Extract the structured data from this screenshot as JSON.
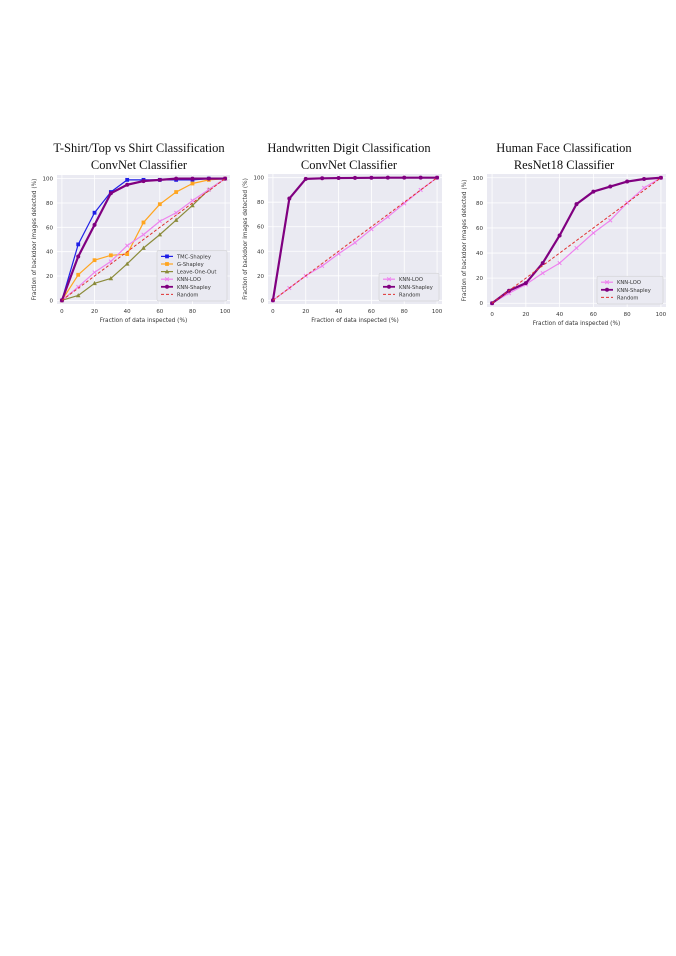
{
  "colors": {
    "bg": "#eaeaf2",
    "grid": "#ffffff",
    "tmc": "#1f1fe6",
    "gshapley": "#ffa520",
    "loo": "#8b8b3a",
    "knnloo": "#ee82ee",
    "knnshapley": "#800080",
    "random": "#e03030"
  },
  "chart_data": [
    {
      "type": "line",
      "title": "T-Shirt/Top vs Shirt Classification",
      "subtitle": "ConvNet Classifier",
      "xlabel": "Fraction of data inspected (%)",
      "ylabel": "Fraction of backdoor images detected (%)",
      "xlim": [
        -3,
        103
      ],
      "ylim": [
        -3,
        103
      ],
      "xticks": [
        "0",
        "20",
        "40",
        "60",
        "80",
        "100"
      ],
      "yticks": [
        "0",
        "20",
        "40",
        "60",
        "80",
        "100"
      ],
      "grid": true,
      "legend_position": "bottom-right",
      "series": [
        {
          "name": "TMC-Shapley",
          "color": "#1f1fe6",
          "marker": "square",
          "width": 1.2,
          "x": [
            0,
            10,
            20,
            30,
            40,
            50,
            60,
            70,
            80,
            90,
            100
          ],
          "y": [
            0,
            46,
            72,
            89,
            99,
            99,
            99,
            99,
            99,
            100,
            100
          ]
        },
        {
          "name": "G-Shapley",
          "color": "#ffa520",
          "marker": "square",
          "width": 1.2,
          "x": [
            0,
            10,
            20,
            30,
            40,
            50,
            60,
            70,
            80,
            90,
            100
          ],
          "y": [
            0,
            21,
            33,
            37,
            38,
            64,
            79,
            89,
            96,
            99,
            100
          ]
        },
        {
          "name": "Leave-One-Out",
          "color": "#8b8b3a",
          "marker": "triangle",
          "width": 1.2,
          "x": [
            0,
            10,
            20,
            30,
            40,
            50,
            60,
            70,
            80,
            90,
            100
          ],
          "y": [
            0,
            4,
            14,
            18,
            30,
            43,
            54,
            66,
            78,
            91,
            100
          ]
        },
        {
          "name": "KNN-LOO",
          "color": "#ee82ee",
          "marker": "x",
          "width": 1.2,
          "x": [
            0,
            10,
            20,
            30,
            40,
            50,
            60,
            70,
            80,
            90,
            100
          ],
          "y": [
            0,
            11,
            23,
            32,
            45,
            54,
            65,
            72,
            82,
            91,
            100
          ]
        },
        {
          "name": "KNN-Shapley",
          "color": "#800080",
          "marker": "circle",
          "width": 2.2,
          "x": [
            0,
            10,
            20,
            30,
            40,
            50,
            60,
            70,
            80,
            90,
            100
          ],
          "y": [
            0,
            36,
            62,
            88,
            95,
            98,
            99,
            100,
            100,
            100,
            100
          ]
        },
        {
          "name": "Random",
          "color": "#e03030",
          "marker": "none",
          "dashed": true,
          "width": 1,
          "x": [
            0,
            100
          ],
          "y": [
            0,
            100
          ]
        }
      ]
    },
    {
      "type": "line",
      "title": "Handwritten Digit Classification",
      "subtitle": "ConvNet Classifier",
      "xlabel": "Fraction of data inspected (%)",
      "ylabel": "Fraction of backdoor images detected (%)",
      "xlim": [
        -3,
        103
      ],
      "ylim": [
        -3,
        103
      ],
      "xticks": [
        "0",
        "20",
        "40",
        "60",
        "80",
        "100"
      ],
      "yticks": [
        "0",
        "20",
        "40",
        "60",
        "80",
        "100"
      ],
      "grid": true,
      "legend_position": "bottom-right",
      "series": [
        {
          "name": "KNN-LOO",
          "color": "#ee82ee",
          "marker": "x",
          "width": 1.2,
          "x": [
            0,
            10,
            20,
            30,
            40,
            50,
            60,
            70,
            80,
            90,
            100
          ],
          "y": [
            0,
            10,
            20,
            28,
            38,
            47,
            58,
            68,
            79,
            90,
            100
          ]
        },
        {
          "name": "KNN-Shapley",
          "color": "#800080",
          "marker": "circle",
          "width": 2.2,
          "x": [
            0,
            10,
            20,
            30,
            40,
            50,
            60,
            70,
            80,
            90,
            100
          ],
          "y": [
            0,
            83,
            99,
            99.5,
            99.7,
            99.8,
            99.9,
            100,
            100,
            100,
            100
          ]
        },
        {
          "name": "Random",
          "color": "#e03030",
          "marker": "none",
          "dashed": true,
          "width": 1,
          "x": [
            0,
            100
          ],
          "y": [
            0,
            100
          ]
        }
      ]
    },
    {
      "type": "line",
      "title": "Human Face Classification",
      "subtitle": "ResNet18 Classifier",
      "xlabel": "Fraction of data inspected (%)",
      "ylabel": "Fraction of backdoor images detected (%)",
      "xlim": [
        -3,
        103
      ],
      "ylim": [
        -3,
        103
      ],
      "xticks": [
        "0",
        "20",
        "40",
        "60",
        "80",
        "100"
      ],
      "yticks": [
        "0",
        "20",
        "40",
        "60",
        "80",
        "100"
      ],
      "grid": true,
      "legend_position": "bottom-right",
      "series": [
        {
          "name": "KNN-LOO",
          "color": "#ee82ee",
          "marker": "x",
          "width": 1.2,
          "x": [
            0,
            10,
            20,
            30,
            40,
            50,
            60,
            70,
            80,
            90,
            100
          ],
          "y": [
            0,
            8,
            15,
            24,
            32,
            44,
            56,
            66,
            80,
            92,
            100
          ]
        },
        {
          "name": "KNN-Shapley",
          "color": "#800080",
          "marker": "circle",
          "width": 2.2,
          "x": [
            0,
            10,
            20,
            30,
            40,
            50,
            60,
            70,
            80,
            90,
            100
          ],
          "y": [
            0,
            10,
            16,
            32,
            54,
            79,
            89,
            93,
            97,
            99,
            100
          ]
        },
        {
          "name": "Random",
          "color": "#e03030",
          "marker": "none",
          "dashed": true,
          "width": 1,
          "x": [
            0,
            100
          ],
          "y": [
            0,
            100
          ]
        }
      ]
    }
  ]
}
